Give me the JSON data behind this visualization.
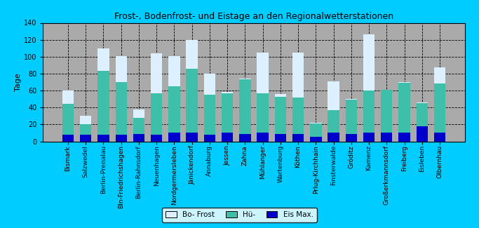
{
  "title": "Frost-, Bodenfrost- und Eistage an den Regionalwetterstationen",
  "ylabel": "Tage",
  "stations": [
    "Bismark",
    "Salzwedel",
    "Berlin-Prenalau",
    "Bln-Friedrichshagen",
    "Berlin-Rahnsdorf",
    "Neuenhagen",
    "Nordgermersleben",
    "Jänickendorf",
    "Annaburg",
    "Jessen",
    "Zahna",
    "Mühlanger",
    "Wartenburg",
    "Köthen",
    "Prlug-Kirchhain",
    "Finsterwalde",
    "Gröditz",
    "Kamenz",
    "Großerkmannsdorf",
    "Freiberg",
    "Eisleben",
    "Olbernhau"
  ],
  "bo_frost": [
    60,
    30,
    110,
    101,
    38,
    104,
    101,
    120,
    80,
    57,
    74,
    105,
    56,
    105,
    22,
    71,
    50,
    126,
    61,
    70,
    46,
    87
  ],
  "hue": [
    44,
    20,
    83,
    70,
    28,
    57,
    65,
    86,
    55,
    58,
    73,
    57,
    53,
    52,
    21,
    37,
    49,
    60,
    61,
    69,
    45,
    68
  ],
  "eis_max": [
    8,
    8,
    8,
    8,
    9,
    8,
    10,
    10,
    8,
    10,
    9,
    10,
    9,
    9,
    5,
    10,
    9,
    10,
    10,
    10,
    18,
    10
  ],
  "color_bo_frost": "#ddf0ff",
  "color_hue": "#3dbfaa",
  "color_eis": "#0000cc",
  "bg_outer": "#00ccff",
  "bg_plot": "#aaaaaa",
  "ylim": [
    0,
    140
  ],
  "yticks": [
    0,
    20,
    40,
    60,
    80,
    100,
    120,
    140
  ],
  "bar_width": 0.65,
  "legend_labels": [
    "Bo- Frost",
    "Hü-",
    "Eis Max."
  ]
}
